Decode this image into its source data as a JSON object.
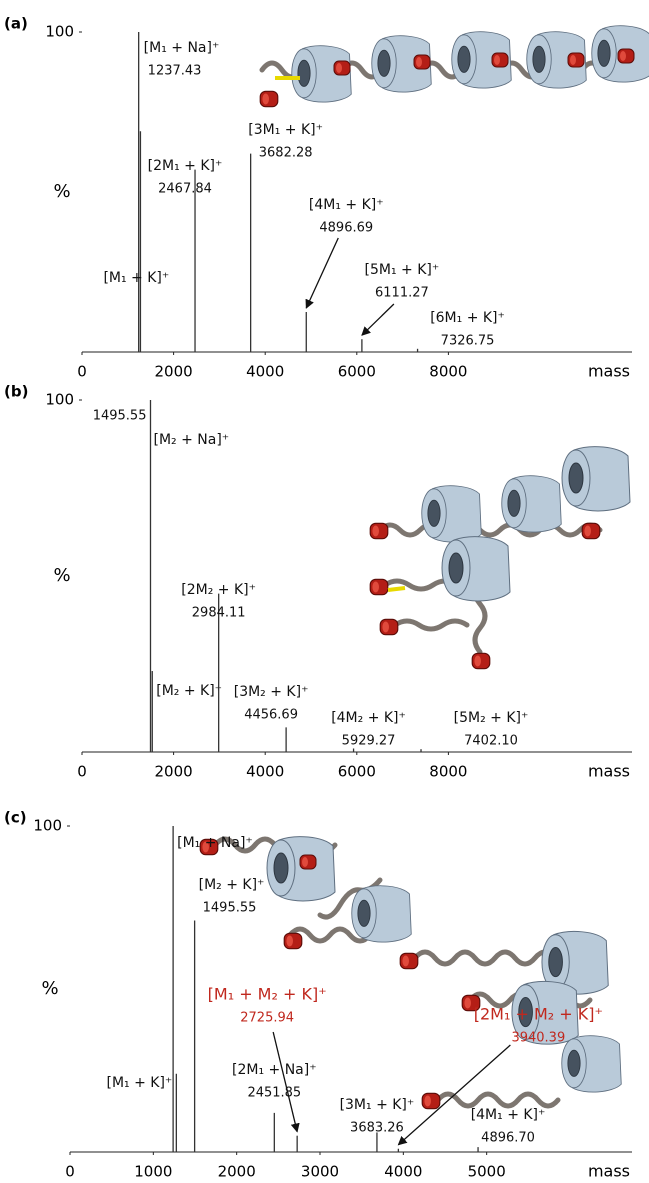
{
  "chart_data": [
    {
      "type": "spectrum",
      "panel_label": "(a)",
      "ylabel": "%",
      "xlabel": "mass",
      "color": "#333333",
      "xlim": [
        0,
        10000
      ],
      "xticks": [
        0,
        2000,
        4000,
        6000,
        8000
      ],
      "ylim": [
        0,
        100
      ],
      "yticks": [
        100
      ],
      "x": [
        1237.43,
        1276,
        2467.84,
        3682.28,
        4896.69,
        6111.27,
        7326.75
      ],
      "values": [
        100,
        69,
        57,
        62,
        12.5,
        4,
        1
      ],
      "ion_labels": [
        "[M₁ + Na]⁺",
        "[M₁ + K]⁺",
        "[2M₁ + K]⁺",
        "[3M₁ + K]⁺",
        "[4M₁ + K]⁺",
        "[5M₁ + K]⁺",
        "[6M₁ + K]⁺"
      ],
      "mass_labels": [
        "1237.43",
        null,
        "2467.84",
        "3682.28",
        "4896.69",
        "6111.27",
        "7326.75"
      ],
      "label_colors": [
        "#111111",
        "#111111",
        "#111111",
        "#111111",
        "#111111",
        "#111111",
        "#111111"
      ]
    },
    {
      "type": "spectrum",
      "panel_label": "(b)",
      "ylabel": "%",
      "xlabel": "mass",
      "color": "#333333",
      "xlim": [
        0,
        10000
      ],
      "xticks": [
        0,
        2000,
        4000,
        6000,
        8000
      ],
      "ylim": [
        0,
        100
      ],
      "yticks": [
        100
      ],
      "x": [
        1495.55,
        1534,
        2984.11,
        4456.69,
        5929.27,
        7402.1
      ],
      "values": [
        100,
        23,
        45,
        7,
        1,
        0.8
      ],
      "ion_labels": [
        "[M₂ + Na]⁺",
        "[M₂ + K]⁺",
        "[2M₂ + K]⁺",
        "[3M₂ + K]⁺",
        "[4M₂ + K]⁺",
        "[5M₂ + K]⁺"
      ],
      "mass_labels": [
        "1495.55",
        null,
        "2984.11",
        "4456.69",
        "5929.27",
        "7402.10"
      ],
      "label_colors": [
        "#111111",
        "#111111",
        "#111111",
        "#111111",
        "#111111",
        "#111111"
      ]
    },
    {
      "type": "spectrum",
      "panel_label": "(c)",
      "ylabel": "%",
      "xlabel": "mass",
      "color": "#333333",
      "xlim": [
        0,
        6000
      ],
      "xticks": [
        0,
        1000,
        2000,
        3000,
        4000,
        5000
      ],
      "ylim": [
        0,
        100
      ],
      "yticks": [
        100
      ],
      "x": [
        1237.43,
        1276,
        1495.55,
        2451.85,
        2725.94,
        3683.26,
        3940.39,
        4896.7
      ],
      "values": [
        100,
        24,
        71,
        12,
        5,
        6,
        1,
        1.5
      ],
      "ion_labels": [
        "[M₁ + Na]⁺",
        "[M₁ + K]⁺",
        "[M₂ + K]⁺",
        "[2M₁ + Na]⁺",
        "[M₁ + M₂ + K]⁺",
        "[3M₁ + K]⁺",
        "[2M₁ + M₂ + K]⁺",
        "[4M₁ + K]⁺"
      ],
      "mass_labels": [
        null,
        null,
        "1495.55",
        "2451.85",
        "2725.94",
        "3683.26",
        "3940.39",
        "4896.70"
      ],
      "label_colors": [
        "#111111",
        "#111111",
        "#111111",
        "#111111",
        "#c0281e",
        "#111111",
        "#c0281e",
        "#111111"
      ]
    }
  ]
}
